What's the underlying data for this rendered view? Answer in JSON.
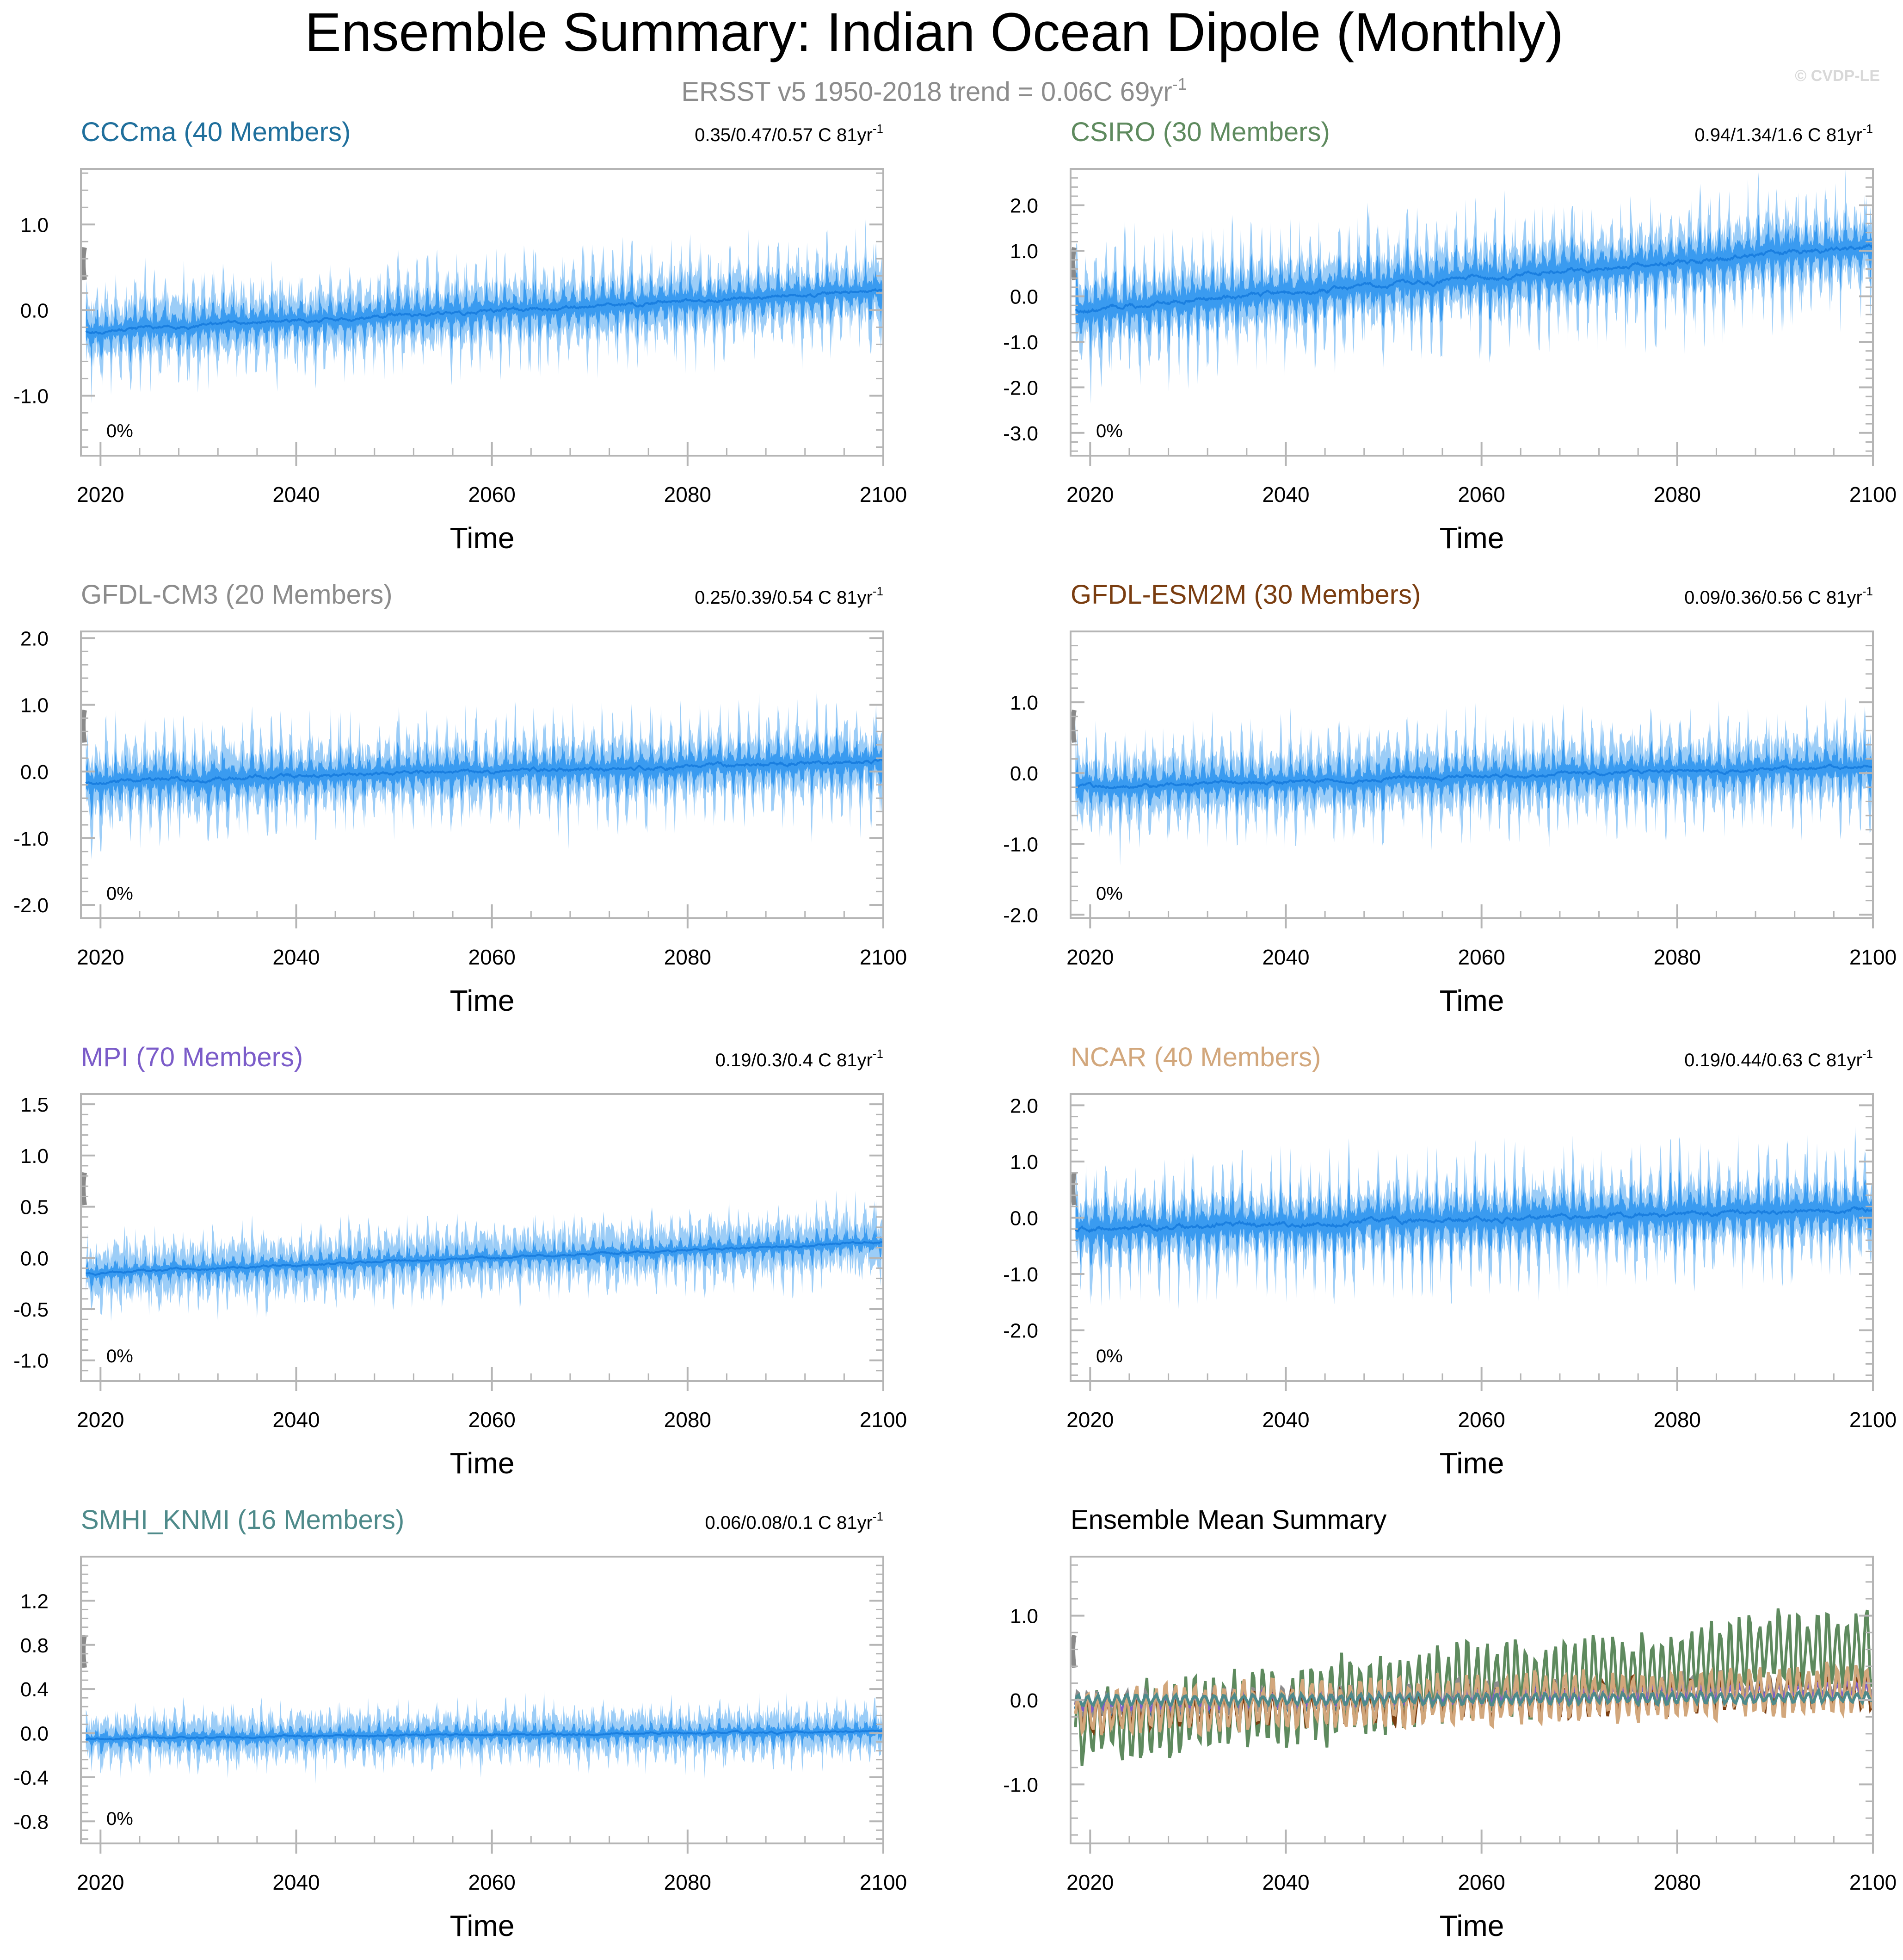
{
  "page": {
    "title": "Ensemble Summary: Indian Ocean Dipole (Monthly)",
    "subtitle_main": "ERSST v5 1950-2018 trend = 0.06C 69yr",
    "subtitle_sup": "-1",
    "watermark": "© CVDP-LE"
  },
  "colors": {
    "band_outer": "#9ccdf7",
    "band_inner": "#3a9bf0",
    "mean_line": "#1a7fe0",
    "obs_tick": "#8a8a8a",
    "frame": "#b5b5b5",
    "text": "#000000",
    "subtitle": "#8c8c8c"
  },
  "chart_data": [
    {
      "id": "cccma",
      "type": "area",
      "title": "CCCma (40 Members)",
      "title_color": "#1f6f9c",
      "trend_main": "0.35/0.47/0.57 C 81yr",
      "trend_sup": "-1",
      "pct_label": "0%",
      "xlabel": "Time",
      "xlim": [
        2018,
        2100
      ],
      "xticks": [
        2020,
        2040,
        2060,
        2080,
        2100
      ],
      "ylim": [
        -1.7,
        1.65
      ],
      "yticks": [
        -1.0,
        0.0,
        1.0
      ],
      "ytick_labels": [
        "-1.0",
        "0.0",
        "1.0"
      ],
      "mean_start": -0.25,
      "mean_end": 0.22,
      "spike_amp": 0.9,
      "outer_amp": 0.35,
      "seed": 11
    },
    {
      "id": "csiro",
      "type": "area",
      "title": "CSIRO (30 Members)",
      "title_color": "#5e8a5e",
      "trend_main": "0.94/1.34/1.6 C 81yr",
      "trend_sup": "-1",
      "pct_label": "0%",
      "xlabel": "Time",
      "xlim": [
        2018,
        2100
      ],
      "xticks": [
        2020,
        2040,
        2060,
        2080,
        2100
      ],
      "ylim": [
        -3.5,
        2.8
      ],
      "yticks": [
        -3.0,
        -2.0,
        -1.0,
        0.0,
        1.0,
        2.0
      ],
      "ytick_labels": [
        "-3.0",
        "-2.0",
        "-1.0",
        "0.0",
        "1.0",
        "2.0"
      ],
      "mean_start": -0.3,
      "mean_end": 1.1,
      "spike_amp": 2.2,
      "outer_amp": 0.6,
      "seed": 23
    },
    {
      "id": "gfdl-cm3",
      "type": "area",
      "title": "GFDL-CM3 (20 Members)",
      "title_color": "#8c8c8c",
      "trend_main": "0.25/0.39/0.54 C 81yr",
      "trend_sup": "-1",
      "pct_label": "0%",
      "xlabel": "Time",
      "xlim": [
        2018,
        2100
      ],
      "xticks": [
        2020,
        2040,
        2060,
        2080,
        2100
      ],
      "ylim": [
        -2.2,
        2.1
      ],
      "yticks": [
        -2.0,
        -1.0,
        0.0,
        1.0,
        2.0
      ],
      "ytick_labels": [
        "-2.0",
        "-1.0",
        "0.0",
        "1.0",
        "2.0"
      ],
      "mean_start": -0.15,
      "mean_end": 0.15,
      "spike_amp": 1.2,
      "outer_amp": 0.45,
      "seed": 37
    },
    {
      "id": "gfdl-esm2m",
      "type": "area",
      "title": "GFDL-ESM2M (30 Members)",
      "title_color": "#7a3d10",
      "trend_main": "0.09/0.36/0.56 C 81yr",
      "trend_sup": "-1",
      "pct_label": "0%",
      "xlabel": "Time",
      "xlim": [
        2018,
        2100
      ],
      "xticks": [
        2020,
        2040,
        2060,
        2080,
        2100
      ],
      "ylim": [
        -2.05,
        2.0
      ],
      "yticks": [
        -2.0,
        -1.0,
        0.0,
        1.0
      ],
      "ytick_labels": [
        "-2.0",
        "-1.0",
        "0.0",
        "1.0"
      ],
      "mean_start": -0.2,
      "mean_end": 0.1,
      "spike_amp": 1.1,
      "outer_amp": 0.45,
      "seed": 41
    },
    {
      "id": "mpi",
      "type": "area",
      "title": "MPI (70 Members)",
      "title_color": "#7b5cc9",
      "trend_main": "0.19/0.3/0.4 C 81yr",
      "trend_sup": "-1",
      "pct_label": "0%",
      "xlabel": "Time",
      "xlim": [
        2018,
        2100
      ],
      "xticks": [
        2020,
        2040,
        2060,
        2080,
        2100
      ],
      "ylim": [
        -1.2,
        1.6
      ],
      "yticks": [
        -1.0,
        -0.5,
        0.0,
        0.5,
        1.0,
        1.5
      ],
      "ytick_labels": [
        "-1.0",
        "-0.5",
        "0.0",
        "0.5",
        "1.0",
        "1.5"
      ],
      "mean_start": -0.15,
      "mean_end": 0.15,
      "spike_amp": 0.45,
      "outer_amp": 0.35,
      "seed": 53
    },
    {
      "id": "ncar",
      "type": "area",
      "title": "NCAR (40 Members)",
      "title_color": "#d2a77c",
      "trend_main": "0.19/0.44/0.63 C 81yr",
      "trend_sup": "-1",
      "pct_label": "0%",
      "xlabel": "Time",
      "xlim": [
        2018,
        2100
      ],
      "xticks": [
        2020,
        2040,
        2060,
        2080,
        2100
      ],
      "ylim": [
        -2.9,
        2.2
      ],
      "yticks": [
        -2.0,
        -1.0,
        0.0,
        1.0,
        2.0
      ],
      "ytick_labels": [
        "-2.0",
        "-1.0",
        "0.0",
        "1.0",
        "2.0"
      ],
      "mean_start": -0.2,
      "mean_end": 0.15,
      "spike_amp": 1.8,
      "outer_amp": 0.4,
      "seed": 67
    },
    {
      "id": "smhi-knmi",
      "type": "area",
      "title": "SMHI_KNMI (16 Members)",
      "title_color": "#4e8a8a",
      "trend_main": "0.06/0.08/0.1 C 81yr",
      "trend_sup": "-1",
      "pct_label": "0%",
      "xlabel": "Time",
      "xlim": [
        2018,
        2100
      ],
      "xticks": [
        2020,
        2040,
        2060,
        2080,
        2100
      ],
      "ylim": [
        -1.0,
        1.6
      ],
      "yticks": [
        -0.8,
        -0.4,
        0.0,
        0.4,
        0.8,
        1.2
      ],
      "ytick_labels": [
        "-0.8",
        "-0.4",
        "0.0",
        "0.4",
        "0.8",
        "1.2"
      ],
      "mean_start": -0.05,
      "mean_end": 0.02,
      "spike_amp": 0.35,
      "outer_amp": 0.25,
      "seed": 79
    },
    {
      "id": "ensemble-mean",
      "type": "line",
      "title": "Ensemble Mean Summary",
      "title_color": "#000000",
      "xlabel": "Time",
      "xlim": [
        2018,
        2100
      ],
      "xticks": [
        2020,
        2040,
        2060,
        2080,
        2100
      ],
      "ylim": [
        -1.7,
        1.7
      ],
      "yticks": [
        -1.0,
        0.0,
        1.0
      ],
      "ytick_labels": [
        "-1.0",
        "0.0",
        "1.0"
      ],
      "series": [
        {
          "name": "CCCma",
          "color": "#1f6f9c",
          "start": -0.1,
          "end": 0.15,
          "amp": 0.12,
          "seed": 3
        },
        {
          "name": "CSIRO",
          "color": "#5e8a5e",
          "start": -0.3,
          "end": 0.65,
          "amp": 0.55,
          "seed": 5
        },
        {
          "name": "GFDL-CM3",
          "color": "#8c8c8c",
          "start": -0.05,
          "end": 0.2,
          "amp": 0.18,
          "seed": 7
        },
        {
          "name": "GFDL-ESM2M",
          "color": "#7a3d10",
          "start": -0.15,
          "end": 0.1,
          "amp": 0.25,
          "seed": 9
        },
        {
          "name": "MPI",
          "color": "#7b5cc9",
          "start": -0.05,
          "end": 0.12,
          "amp": 0.1,
          "seed": 13
        },
        {
          "name": "NCAR",
          "color": "#d2a77c",
          "start": -0.15,
          "end": 0.15,
          "amp": 0.35,
          "seed": 17
        },
        {
          "name": "SMHI_KNMI",
          "color": "#4e8a8a",
          "start": 0.0,
          "end": 0.03,
          "amp": 0.08,
          "seed": 19
        }
      ]
    }
  ]
}
